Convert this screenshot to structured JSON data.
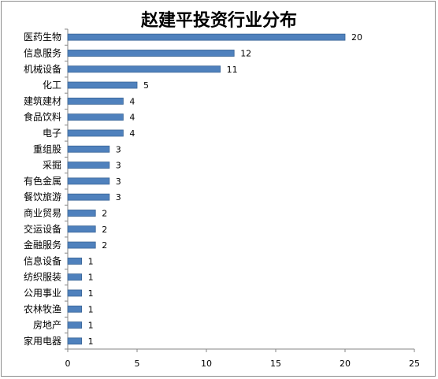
{
  "chart_data": {
    "type": "bar",
    "orientation": "horizontal",
    "title": "赵建平投资行业分布",
    "categories": [
      "医药生物",
      "信息服务",
      "机械设备",
      "化工",
      "建筑建材",
      "食品饮料",
      "电子",
      "重组股",
      "采掘",
      "有色金属",
      "餐饮旅游",
      "商业贸易",
      "交运设备",
      "金融服务",
      "信息设备",
      "纺织服装",
      "公用事业",
      "农林牧渔",
      "房地产",
      "家用电器"
    ],
    "values": [
      20,
      12,
      11,
      5,
      4,
      4,
      4,
      3,
      3,
      3,
      3,
      2,
      2,
      2,
      1,
      1,
      1,
      1,
      1,
      1
    ],
    "xlim": [
      0,
      25
    ],
    "xticks": [
      0,
      5,
      10,
      15,
      20,
      25
    ],
    "bar_color": "#4f81bd",
    "grid": false,
    "legend": false
  }
}
